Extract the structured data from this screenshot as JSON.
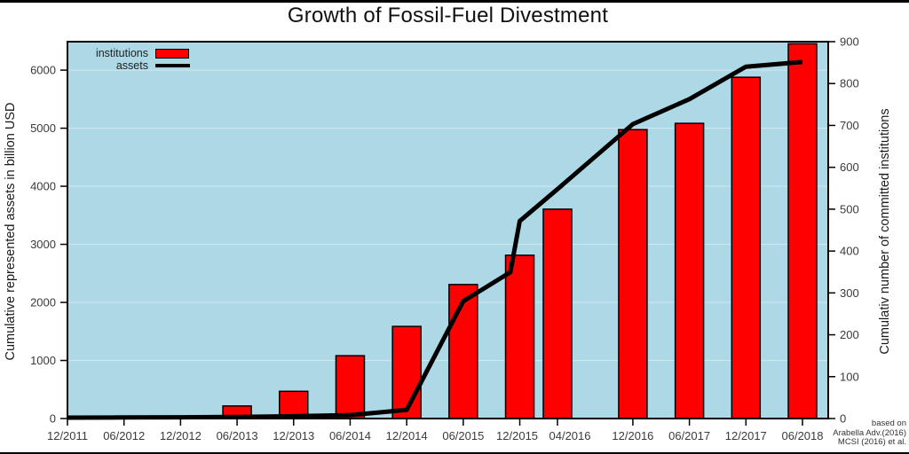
{
  "page": {
    "attribution_lines": [
      "based on",
      "Arabella Adv.(2016)",
      "MCSI (2016) et al."
    ]
  },
  "chart_data": {
    "type": "combo",
    "title": "Growth of Fossil-Fuel Divestment",
    "ylabel_left": "Cumulative represented assets in billion USD",
    "ylabel_right": "Cumulativ number of committed institutions",
    "ylim_left": [
      0,
      6490
    ],
    "yticks_left": [
      0,
      1000,
      2000,
      3000,
      4000,
      5000,
      6000
    ],
    "ylim_right": [
      0,
      900
    ],
    "yticks_right": [
      0,
      100,
      200,
      300,
      400,
      500,
      600,
      700,
      800,
      900
    ],
    "x_tick_labels": [
      "12/2011",
      "06/2012",
      "12/2012",
      "06/2013",
      "12/2013",
      "06/2014",
      "12/2014",
      "06/2015",
      "12/2015",
      "04/2016",
      "12/2016",
      "06/2017",
      "12/2017",
      "06/2018"
    ],
    "grid": "faint white horizontal lines at left-axis thousands",
    "legend_position": "top-left inside plot",
    "plot_bg_color": "#add8e6",
    "bar_color": "#ff0000",
    "line_color": "#000000",
    "legend": [
      {
        "label": "institutions",
        "type": "bar",
        "color": "#ff0000"
      },
      {
        "label": "assets",
        "type": "line",
        "color": "#000000"
      }
    ],
    "series": [
      {
        "name": "institutions",
        "type": "bar",
        "axis": "right",
        "color": "#ff0000",
        "categories": [
          "12/2011",
          "06/2012",
          "12/2012",
          "06/2013",
          "12/2013",
          "06/2014",
          "12/2014",
          "06/2015",
          "12/2015",
          "04/2016",
          "12/2016",
          "06/2017",
          "12/2017",
          "06/2018"
        ],
        "values": [
          0,
          0,
          0,
          30,
          65,
          150,
          220,
          320,
          390,
          500,
          690,
          705,
          815,
          895
        ]
      },
      {
        "name": "assets",
        "type": "line",
        "axis": "left",
        "color": "#000000",
        "points": [
          {
            "date": "12/2011",
            "value": 15
          },
          {
            "date": "06/2012",
            "value": 18
          },
          {
            "date": "12/2012",
            "value": 22
          },
          {
            "date": "06/2013",
            "value": 28
          },
          {
            "date": "12/2013",
            "value": 40
          },
          {
            "date": "06/2014",
            "value": 60
          },
          {
            "date": "12/2014",
            "value": 150
          },
          {
            "date": "06/2015",
            "value": 2020
          },
          {
            "date": "11/2015",
            "value": 2520
          },
          {
            "date": "12/2015",
            "value": 3400
          },
          {
            "date": "04/2016",
            "value": 3950
          },
          {
            "date": "12/2016",
            "value": 5070
          },
          {
            "date": "06/2017",
            "value": 5500
          },
          {
            "date": "12/2017",
            "value": 6060
          },
          {
            "date": "06/2018",
            "value": 6140
          }
        ]
      }
    ]
  }
}
